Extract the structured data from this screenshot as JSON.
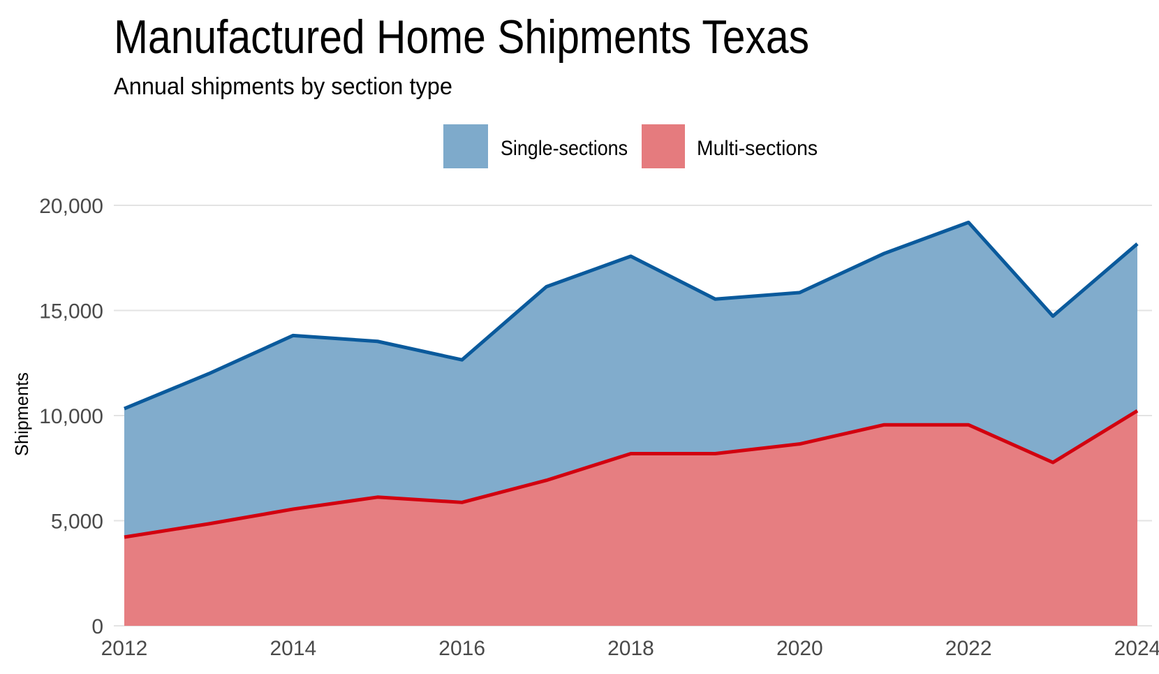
{
  "chart_data": {
    "type": "area",
    "stacked": true,
    "title": "Manufactured Home Shipments Texas",
    "subtitle": "Annual shipments by section type",
    "xlabel": "",
    "ylabel": "Shipments",
    "x": [
      2012,
      2013,
      2014,
      2015,
      2016,
      2017,
      2018,
      2019,
      2020,
      2021,
      2022,
      2023,
      2024
    ],
    "xticks": [
      "2012",
      "2014",
      "2016",
      "2018",
      "2020",
      "2022",
      "2024"
    ],
    "yticks": [
      "0",
      "5,000",
      "10,000",
      "15,000",
      "20,000"
    ],
    "xlim": [
      2012,
      2024
    ],
    "ylim": [
      0,
      20000
    ],
    "grid": true,
    "legend_position": "top",
    "series": [
      {
        "name": "Multi-sections",
        "fill": "#e57b7e",
        "line": "#d2010f",
        "values": [
          4220,
          4850,
          5550,
          6120,
          5870,
          6920,
          8190,
          8190,
          8650,
          9560,
          9560,
          7770,
          10230
        ]
      },
      {
        "name": "Single-sections",
        "fill": "#7eaacb",
        "line": "#0a5a9c",
        "values": [
          6110,
          7140,
          8260,
          7410,
          6780,
          9210,
          9390,
          7350,
          7200,
          8150,
          9630,
          6960,
          7940
        ]
      }
    ],
    "legend_order": [
      "Single-sections",
      "Multi-sections"
    ]
  }
}
